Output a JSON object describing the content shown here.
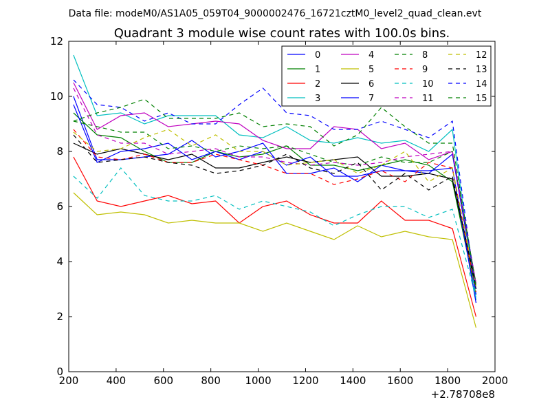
{
  "chart_data": {
    "type": "line",
    "suptitle": "Data file: modeM0/AS1A05_059T04_9000002476_16721cztM0_level2_quad_clean.evt",
    "title": "Quadrant 3 module wise count rates with 100.0s bins.",
    "xlabel": "",
    "ylabel": "",
    "x_offset_label": "+2.78708e8",
    "xlim": [
      200,
      2000
    ],
    "ylim": [
      0,
      12
    ],
    "xticks": [
      200,
      400,
      600,
      800,
      1000,
      1200,
      1400,
      1600,
      1800,
      2000
    ],
    "yticks": [
      0,
      2,
      4,
      6,
      8,
      10,
      12
    ],
    "x": [
      220,
      320,
      420,
      520,
      620,
      720,
      820,
      920,
      1020,
      1120,
      1220,
      1320,
      1420,
      1520,
      1620,
      1720,
      1820,
      1920
    ],
    "legend_position": "top-right",
    "legend_columns": 4,
    "series": [
      {
        "name": "0",
        "color": "#0000ff",
        "dash": "solid",
        "values": [
          10.0,
          7.7,
          7.7,
          7.8,
          7.9,
          8.4,
          7.8,
          8.0,
          8.3,
          7.2,
          7.2,
          7.4,
          6.9,
          7.5,
          7.3,
          7.2,
          7.9,
          3.0
        ]
      },
      {
        "name": "1",
        "color": "#008000",
        "dash": "solid",
        "values": [
          9.4,
          8.6,
          8.5,
          8.0,
          7.6,
          7.6,
          8.0,
          7.8,
          7.9,
          8.2,
          7.5,
          7.5,
          7.3,
          7.5,
          7.7,
          7.5,
          6.9,
          2.8
        ]
      },
      {
        "name": "2",
        "color": "#ff0000",
        "dash": "solid",
        "values": [
          7.8,
          6.2,
          6.0,
          6.2,
          6.4,
          6.1,
          6.2,
          5.4,
          6.0,
          6.2,
          5.7,
          5.4,
          5.4,
          6.2,
          5.5,
          5.5,
          5.2,
          2.0
        ]
      },
      {
        "name": "3",
        "color": "#00bfbf",
        "dash": "solid",
        "values": [
          11.5,
          9.3,
          9.4,
          9.0,
          9.3,
          9.3,
          9.3,
          8.6,
          8.5,
          8.9,
          8.4,
          8.3,
          8.5,
          8.3,
          8.4,
          8.0,
          8.8,
          2.6
        ]
      },
      {
        "name": "4",
        "color": "#bf00bf",
        "dash": "solid",
        "values": [
          10.5,
          8.8,
          9.3,
          9.4,
          8.9,
          9.0,
          9.1,
          9.0,
          8.4,
          8.1,
          8.1,
          8.9,
          8.8,
          8.1,
          8.3,
          7.7,
          8.0,
          3.2
        ]
      },
      {
        "name": "5",
        "color": "#bfbf00",
        "dash": "solid",
        "values": [
          6.5,
          5.7,
          5.8,
          5.7,
          5.4,
          5.5,
          5.4,
          5.4,
          5.1,
          5.4,
          5.1,
          4.8,
          5.3,
          4.9,
          5.1,
          4.9,
          4.8,
          1.6
        ]
      },
      {
        "name": "6",
        "color": "#000000",
        "dash": "solid",
        "values": [
          8.3,
          7.9,
          8.1,
          7.9,
          7.7,
          7.9,
          7.4,
          7.4,
          7.6,
          7.8,
          7.6,
          7.7,
          7.8,
          7.1,
          7.1,
          7.2,
          7.0,
          3.0
        ]
      },
      {
        "name": "7",
        "color": "#0000ff",
        "dash": "solid",
        "values": [
          9.7,
          7.6,
          8.0,
          8.1,
          8.3,
          7.7,
          8.0,
          7.7,
          8.0,
          7.5,
          7.8,
          7.1,
          7.1,
          7.3,
          7.3,
          7.3,
          7.4,
          2.5
        ]
      },
      {
        "name": "8",
        "color": "#008000",
        "dash": "dashed",
        "values": [
          9.1,
          8.9,
          8.7,
          8.7,
          8.1,
          8.2,
          8.0,
          8.2,
          8.1,
          8.2,
          7.9,
          7.6,
          7.5,
          7.8,
          7.6,
          7.6,
          8.0,
          3.2
        ]
      },
      {
        "name": "9",
        "color": "#ff0000",
        "dash": "dashed",
        "values": [
          8.8,
          7.8,
          7.7,
          7.9,
          7.6,
          7.6,
          7.9,
          7.7,
          7.5,
          7.2,
          7.2,
          6.8,
          7.0,
          7.3,
          6.9,
          7.6,
          7.4,
          2.9
        ]
      },
      {
        "name": "10",
        "color": "#00bfbf",
        "dash": "dashed",
        "values": [
          7.1,
          6.3,
          7.4,
          6.4,
          6.2,
          6.2,
          6.4,
          5.9,
          6.2,
          6.0,
          5.8,
          5.3,
          5.7,
          6.0,
          6.0,
          5.6,
          5.9,
          2.7
        ]
      },
      {
        "name": "11",
        "color": "#bf00bf",
        "dash": "dashed",
        "values": [
          10.3,
          8.6,
          8.3,
          8.3,
          7.9,
          8.0,
          8.1,
          7.8,
          7.8,
          7.6,
          7.5,
          7.6,
          7.5,
          7.6,
          7.8,
          7.9,
          8.0,
          3.2
        ]
      },
      {
        "name": "12",
        "color": "#bfbf00",
        "dash": "dashed",
        "values": [
          8.7,
          8.0,
          8.1,
          8.5,
          8.8,
          8.2,
          8.6,
          8.0,
          8.0,
          7.5,
          7.6,
          7.7,
          7.2,
          7.5,
          8.0,
          6.9,
          7.4,
          3.1
        ]
      },
      {
        "name": "13",
        "color": "#000000",
        "dash": "dashed",
        "values": [
          8.6,
          7.6,
          7.7,
          7.8,
          7.6,
          7.5,
          7.2,
          7.3,
          7.5,
          7.9,
          7.4,
          7.2,
          7.6,
          6.6,
          7.2,
          6.6,
          7.1,
          3.1
        ]
      },
      {
        "name": "14",
        "color": "#0000ff",
        "dash": "dashed",
        "values": [
          10.6,
          9.7,
          9.6,
          9.1,
          9.4,
          9.0,
          9.0,
          9.7,
          10.3,
          9.4,
          9.3,
          8.8,
          8.8,
          9.1,
          8.8,
          8.5,
          9.1,
          2.8
        ]
      },
      {
        "name": "15",
        "color": "#008000",
        "dash": "dashed",
        "values": [
          9.1,
          9.4,
          9.6,
          9.9,
          9.2,
          9.2,
          9.2,
          9.4,
          8.9,
          9.0,
          8.9,
          8.2,
          8.6,
          9.6,
          8.9,
          8.3,
          8.3,
          3.1
        ]
      }
    ]
  }
}
